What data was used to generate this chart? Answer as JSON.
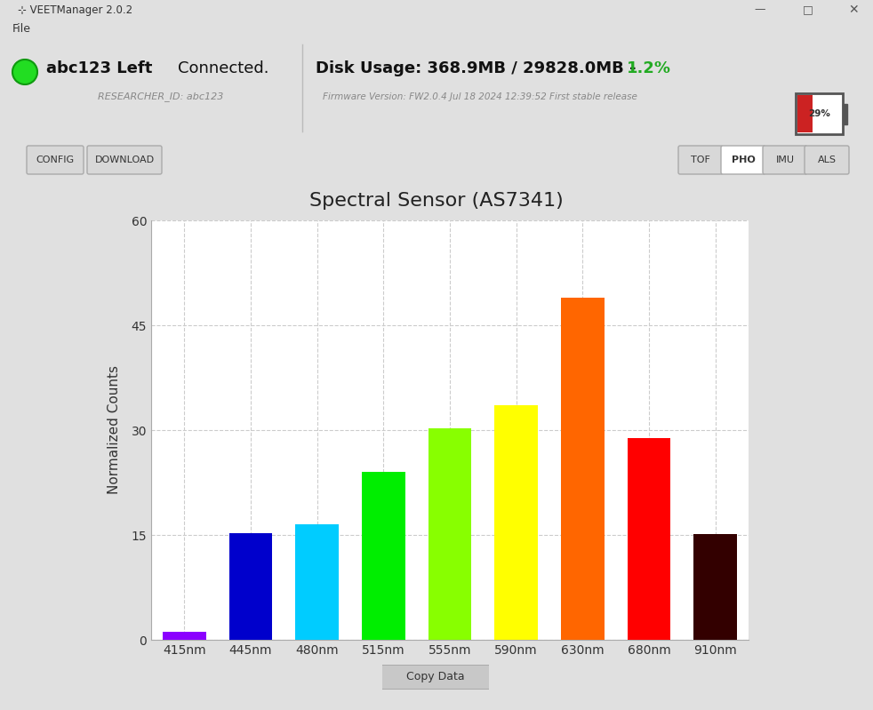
{
  "title": "Spectral Sensor (AS7341)",
  "categories": [
    "415nm",
    "445nm",
    "480nm",
    "515nm",
    "555nm",
    "590nm",
    "630nm",
    "680nm",
    "910nm"
  ],
  "values": [
    1.2,
    15.3,
    16.5,
    24.0,
    30.3,
    33.5,
    49.0,
    28.8,
    15.1
  ],
  "bar_colors": [
    "#8B00FF",
    "#0000CC",
    "#00CCFF",
    "#00EE00",
    "#88FF00",
    "#FFFF00",
    "#FF6600",
    "#FF0000",
    "#330000"
  ],
  "ylabel": "Normalized Counts",
  "ylim": [
    0,
    60
  ],
  "yticks": [
    0,
    15,
    30,
    45,
    60
  ],
  "bg_color": "#E0E0E0",
  "plot_bg": "#FFFFFF",
  "grid_color": "#CCCCCC",
  "title_fontsize": 16,
  "axis_fontsize": 11,
  "tick_fontsize": 10,
  "window_title": "VEETManager 2.0.2",
  "menu_item": "File",
  "device_name": "abc123 Left",
  "connection_status": "Connected.",
  "researcher_id": "RESEARCHER_ID: abc123",
  "disk_usage": "Disk Usage: 368.9MB / 29828.0MB -",
  "disk_pct": "1.2%",
  "firmware": "Firmware Version: FW2.0.4 Jul 18 2024 12:39:52 First stable release",
  "battery_pct": "29%",
  "btn_config": "CONFIG",
  "btn_download": "DOWNLOAD",
  "btn_tof": "TOF",
  "btn_pho": "PHO",
  "btn_imu": "IMU",
  "btn_als": "ALS",
  "btn_copy": "Copy Data",
  "titlebar_bg": "#F0F0F0",
  "menubar_bg": "#F5F5F5",
  "separator_color": "#BBBBBB"
}
